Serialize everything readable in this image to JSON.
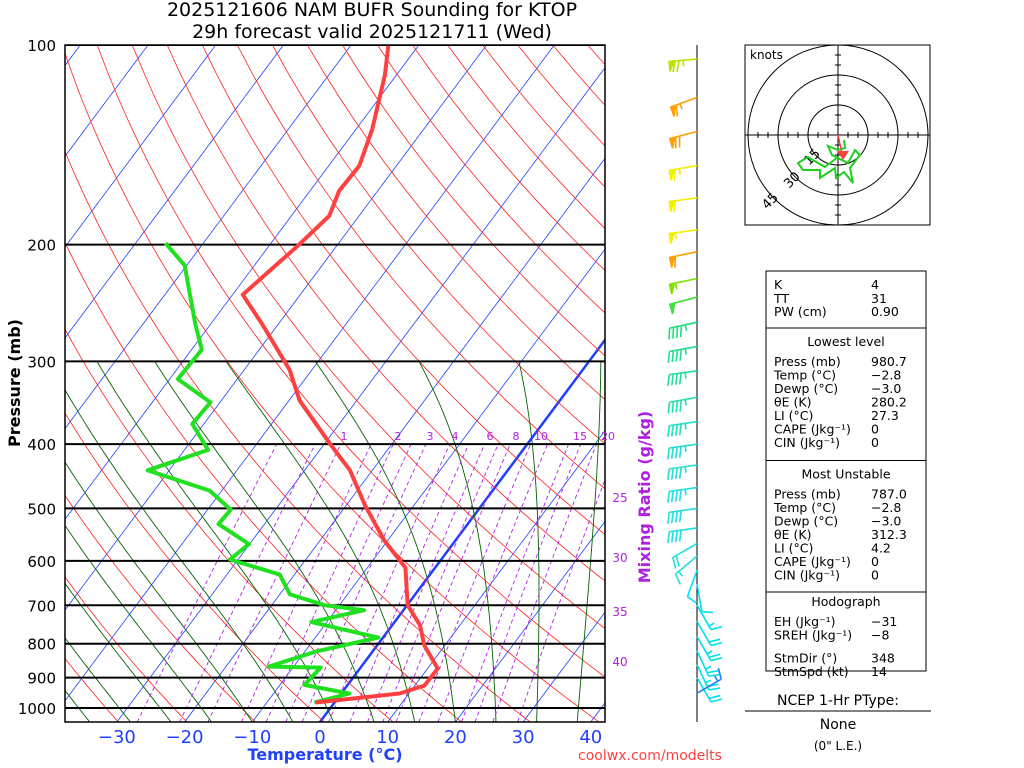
{
  "title": {
    "line1": "2025121606 NAM BUFR Sounding for KTOP",
    "line2": "29h forecast valid 2025121711 (Wed)"
  },
  "credit": "coolwx.com/modelts",
  "colors": {
    "temp": "#ff4040",
    "dewp": "#20e020",
    "isotherm": "#2040ff",
    "dry_adiabat": "#ff2020",
    "moist_adiabat": "#006400",
    "mixing": "#b020e0"
  },
  "chart_data": {
    "type": "skew-t",
    "xlabel": "Temperature (°C)",
    "ylabel": "Pressure (mb)",
    "mixing_label": "Mixing Ratio (g/kg)",
    "x_ticks": [
      -30,
      -20,
      -10,
      0,
      10,
      20,
      30,
      40
    ],
    "y_ticks": [
      100,
      200,
      300,
      400,
      500,
      600,
      700,
      800,
      900,
      1000
    ],
    "xlim": [
      -38,
      42
    ],
    "ylim": [
      1050,
      100
    ],
    "mixing_ratios": [
      "1",
      "2",
      "3",
      "4",
      "6",
      "8",
      "10",
      "15",
      "20"
    ],
    "side_temp_labels": [
      "25",
      "30",
      "35",
      "40"
    ],
    "temperature": [
      [
        100,
        -64.5
      ],
      [
        111,
        -61.7
      ],
      [
        134,
        -57.6
      ],
      [
        152,
        -55.5
      ],
      [
        166,
        -55.7
      ],
      [
        181,
        -54.4
      ],
      [
        200,
        -55.7
      ],
      [
        238,
        -58.5
      ],
      [
        264,
        -52.3
      ],
      [
        309,
        -43.3
      ],
      [
        344,
        -38.4
      ],
      [
        400,
        -29.1
      ],
      [
        438,
        -23.3
      ],
      [
        494,
        -17.3
      ],
      [
        559,
        -10.5
      ],
      [
        614,
        -4.4
      ],
      [
        700,
        0.1
      ],
      [
        750,
        4.1
      ],
      [
        805,
        7.0
      ],
      [
        872,
        11.5
      ],
      [
        925,
        11.4
      ],
      [
        951,
        8.6
      ],
      [
        965,
        3.3
      ],
      [
        981,
        -2.8
      ]
    ],
    "dewpoint": [
      [
        199,
        -75.6
      ],
      [
        215,
        -70.3
      ],
      [
        238,
        -66.3
      ],
      [
        264,
        -62.2
      ],
      [
        288,
        -58.5
      ],
      [
        319,
        -58.8
      ],
      [
        346,
        -51.4
      ],
      [
        373,
        -51.7
      ],
      [
        408,
        -46.5
      ],
      [
        438,
        -53.2
      ],
      [
        470,
        -41.8
      ],
      [
        502,
        -36.6
      ],
      [
        528,
        -36.8
      ],
      [
        566,
        -30.1
      ],
      [
        597,
        -31.2
      ],
      [
        629,
        -22.2
      ],
      [
        674,
        -18.5
      ],
      [
        700,
        -12.1
      ],
      [
        712,
        -5.8
      ],
      [
        742,
        -12.3
      ],
      [
        783,
        -0.7
      ],
      [
        822,
        -8.4
      ],
      [
        866,
        -13.7
      ],
      [
        869,
        -5.9
      ],
      [
        923,
        -6.4
      ],
      [
        951,
        1.2
      ],
      [
        981,
        -3.0
      ]
    ],
    "winds": [
      [
        105,
        265,
        75,
        "#c0e000"
      ],
      [
        120,
        250,
        65,
        "#ffa000"
      ],
      [
        135,
        255,
        70,
        "#ffa000"
      ],
      [
        152,
        260,
        65,
        "#f0f000"
      ],
      [
        170,
        262,
        60,
        "#f0f000"
      ],
      [
        190,
        262,
        55,
        "#f0f000"
      ],
      [
        205,
        258,
        60,
        "#ffa000"
      ],
      [
        225,
        258,
        55,
        "#80e000"
      ],
      [
        240,
        255,
        50,
        "#40e040"
      ],
      [
        262,
        258,
        45,
        "#20e080"
      ],
      [
        285,
        260,
        45,
        "#20e090"
      ],
      [
        310,
        262,
        45,
        "#20e0a0"
      ],
      [
        340,
        260,
        45,
        "#20e0b0"
      ],
      [
        370,
        262,
        45,
        "#20e0c0"
      ],
      [
        400,
        262,
        45,
        "#20e0d0"
      ],
      [
        430,
        262,
        45,
        "#20e0d0"
      ],
      [
        465,
        262,
        45,
        "#20e0e0"
      ],
      [
        500,
        262,
        40,
        "#20e0e0"
      ],
      [
        535,
        262,
        40,
        "#20e0e0"
      ],
      [
        565,
        240,
        20,
        "#20e0e0"
      ],
      [
        590,
        230,
        15,
        "#20e0e0"
      ],
      [
        620,
        200,
        10,
        "#00e0f0"
      ],
      [
        650,
        170,
        10,
        "#00e0f0"
      ],
      [
        700,
        150,
        15,
        "#00e0f0"
      ],
      [
        740,
        150,
        20,
        "#00e0f0"
      ],
      [
        780,
        150,
        25,
        "#00e0f0"
      ],
      [
        820,
        155,
        25,
        "#00e0f0"
      ],
      [
        860,
        155,
        25,
        "#00e0f0"
      ],
      [
        900,
        150,
        20,
        "#00e0f0"
      ],
      [
        950,
        60,
        15,
        "#2080ff"
      ]
    ]
  },
  "hodograph": {
    "units": "knots",
    "ring_labels": [
      "15",
      "30",
      "45"
    ]
  },
  "stats": {
    "general": [
      [
        "K",
        "4"
      ],
      [
        "TT",
        "31"
      ],
      [
        "PW (cm)",
        "0.90"
      ]
    ],
    "lowest_title": "Lowest level",
    "lowest": [
      [
        "Press (mb)",
        "980.7"
      ],
      [
        "Temp (°C)",
        "−2.8"
      ],
      [
        "Dewp (°C)",
        "−3.0"
      ],
      [
        "θE (K)",
        "280.2"
      ],
      [
        "LI (°C)",
        "27.3"
      ],
      [
        "CAPE (Jkg⁻¹)",
        "0"
      ],
      [
        "CIN (Jkg⁻¹)",
        "0"
      ]
    ],
    "mu_title": "Most Unstable",
    "mu": [
      [
        "Press (mb)",
        "787.0"
      ],
      [
        "Temp (°C)",
        "−2.8"
      ],
      [
        "Dewp (°C)",
        "−3.0"
      ],
      [
        "θE (K)",
        "312.3"
      ],
      [
        "LI (°C)",
        "4.2"
      ],
      [
        "CAPE (Jkg⁻¹)",
        "0"
      ],
      [
        "CIN (Jkg⁻¹)",
        "0"
      ]
    ],
    "hodo_title": "Hodograph",
    "hodo": [
      [
        "EH (Jkg⁻¹)",
        "−31"
      ],
      [
        "SREH (Jkg⁻¹)",
        "−8"
      ],
      [
        "StmDir (°)",
        "348"
      ],
      [
        "StmSpd (kt)",
        "14"
      ]
    ]
  },
  "ptype": {
    "title": "NCEP 1-Hr PType:",
    "value": "None",
    "amount": "(0\" L.E.)"
  }
}
